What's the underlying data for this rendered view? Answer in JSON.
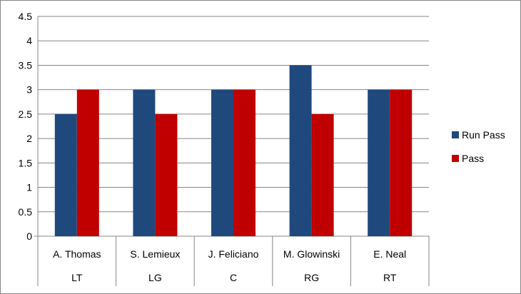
{
  "chart_data": {
    "type": "bar",
    "categories": [
      {
        "name": "A. Thomas",
        "position": "LT"
      },
      {
        "name": "S. Lemieux",
        "position": "LG"
      },
      {
        "name": "J. Feliciano",
        "position": "C"
      },
      {
        "name": "M. Glowinski",
        "position": "RG"
      },
      {
        "name": "E. Neal",
        "position": "RT"
      }
    ],
    "series": [
      {
        "name": "Run Pass",
        "color": "#1f497d",
        "values": [
          2.5,
          3,
          3,
          3.5,
          3
        ]
      },
      {
        "name": "Pass",
        "color": "#c00000",
        "values": [
          3,
          2.5,
          3,
          2.5,
          3
        ]
      }
    ],
    "yticks": [
      "0",
      "0.5",
      "1",
      "1.5",
      "2",
      "2.5",
      "3",
      "3.5",
      "4",
      "4.5"
    ],
    "ylim": [
      0,
      4.5
    ],
    "grid": true,
    "legend_position": "right",
    "title": "",
    "xlabel": "",
    "ylabel": ""
  }
}
